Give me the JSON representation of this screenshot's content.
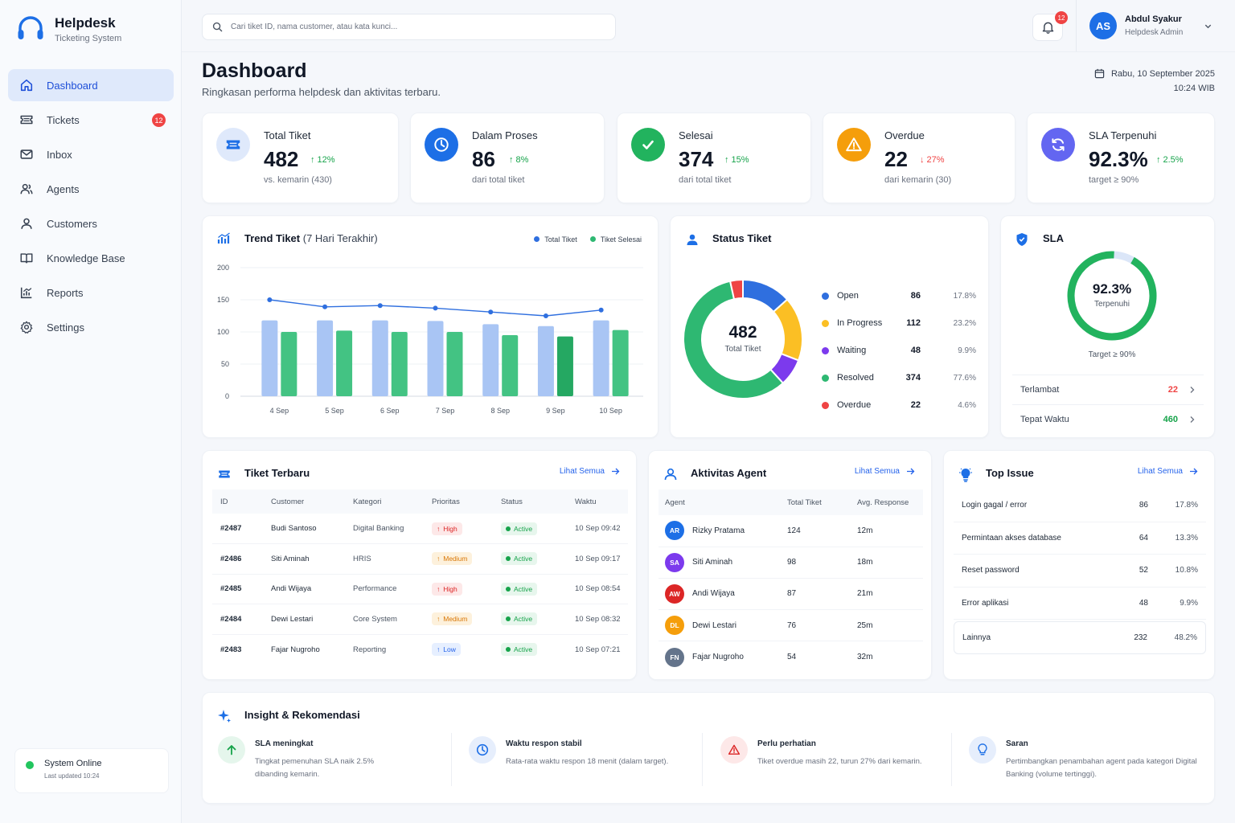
{
  "brand": {
    "title": "Helpdesk",
    "subtitle": "Ticketing System"
  },
  "nav": [
    {
      "label": "Dashboard",
      "icon": "home-icon",
      "active": true
    },
    {
      "label": "Tickets",
      "icon": "ticket-icon",
      "badge": "12"
    },
    {
      "label": "Inbox",
      "icon": "mail-icon"
    },
    {
      "label": "Agents",
      "icon": "users-icon"
    },
    {
      "label": "Customers",
      "icon": "user-icon"
    },
    {
      "label": "Knowledge Base",
      "icon": "book-icon"
    },
    {
      "label": "Reports",
      "icon": "chart-icon"
    },
    {
      "label": "Settings",
      "icon": "gear-icon"
    }
  ],
  "system": {
    "title": "System Online",
    "updated": "Last updated 10:24"
  },
  "search": {
    "placeholder": "Cari tiket ID, nama customer, atau kata kunci..."
  },
  "notifications": {
    "count": "12"
  },
  "user": {
    "initials": "AS",
    "name": "Abdul Syakur",
    "role": "Helpdesk Admin"
  },
  "page": {
    "title": "Dashboard",
    "subtitle": "Ringkasan performa helpdesk dan aktivitas terbaru.",
    "date": "Rabu, 10 September 2025",
    "time": "10:24 WIB"
  },
  "stats": [
    {
      "label": "Total Tiket",
      "value": "482",
      "delta": "12%",
      "direction": "up",
      "note": "vs. kemarin (430)",
      "icon": "ticket-icon",
      "color": "#1d6fe6",
      "bg": "#dfe9fb"
    },
    {
      "label": "Dalam Proses",
      "value": "86",
      "delta": "8%",
      "direction": "up",
      "note": "dari total tiket",
      "icon": "clock-icon",
      "color": "#ffffff",
      "bg": "#1d6fe6"
    },
    {
      "label": "Selesai",
      "value": "374",
      "delta": "15%",
      "direction": "up",
      "note": "dari total tiket",
      "icon": "check-icon",
      "color": "#ffffff",
      "bg": "#22b35e"
    },
    {
      "label": "Overdue",
      "value": "22",
      "delta": "27%",
      "direction": "down",
      "note": "dari kemarin (30)",
      "icon": "warning-icon",
      "color": "#ffffff",
      "bg": "#f59e0b"
    },
    {
      "label": "SLA Terpenuhi",
      "value": "92.3%",
      "delta": "2.5%",
      "direction": "up",
      "note": "target ≥ 90%",
      "icon": "refresh-icon",
      "color": "#ffffff",
      "bg": "#6366f1"
    }
  ],
  "trend": {
    "title": "Trend Tiket",
    "title_suffix": "(7 Hari Terakhir)",
    "legend_total": "Total Tiket",
    "legend_done": "Tiket Selesai",
    "color_total": "#2f6fdf",
    "color_done": "#2eb872"
  },
  "chart_data": {
    "type": "bar",
    "categories": [
      "4 Sep",
      "5 Sep",
      "6 Sep",
      "7 Sep",
      "8 Sep",
      "9 Sep",
      "10 Sep"
    ],
    "series": [
      {
        "name": "Total Tiket",
        "type": "bar",
        "values": [
          118,
          118,
          118,
          117,
          112,
          109,
          118
        ]
      },
      {
        "name": "Tiket Selesai",
        "type": "bar",
        "values": [
          100,
          102,
          100,
          100,
          95,
          93,
          103
        ]
      },
      {
        "name": "Total Tiket",
        "type": "line",
        "values": [
          150,
          139,
          141,
          137,
          131,
          125,
          134
        ]
      }
    ],
    "ylim": [
      0,
      200
    ],
    "yticks": [
      "0",
      "50",
      "100",
      "150",
      "200"
    ],
    "grid": true,
    "legend": "top-right"
  },
  "status": {
    "title": "Status Tiket",
    "total": "482",
    "total_label": "Total Tiket",
    "items": [
      {
        "name": "Open",
        "count": "86",
        "pct": "17.8%",
        "value": 17.8,
        "color": "#2f6fdf"
      },
      {
        "name": "In Progress",
        "count": "112",
        "pct": "23.2%",
        "value": 23.2,
        "color": "#fbbf24"
      },
      {
        "name": "Waiting",
        "count": "48",
        "pct": "9.9%",
        "value": 9.9,
        "color": "#7c3aed"
      },
      {
        "name": "Resolved",
        "count": "374",
        "pct": "77.6%",
        "value": 77.6,
        "color": "#2eb872"
      },
      {
        "name": "Overdue",
        "count": "22",
        "pct": "4.6%",
        "value": 4.6,
        "color": "#ef4444"
      }
    ]
  },
  "sla": {
    "title": "SLA",
    "value": "92.3%",
    "percent": 92.3,
    "label": "Terpenuhi",
    "target": "Target ≥ 90%",
    "rows": [
      {
        "label": "Terlambat",
        "value": "22",
        "color": "#ef4444"
      },
      {
        "label": "Tepat Waktu",
        "value": "460",
        "color": "#16a34a"
      }
    ]
  },
  "recent": {
    "title": "Tiket Terbaru",
    "link": "Lihat Semua",
    "headers": [
      "ID",
      "Customer",
      "Kategori",
      "Prioritas",
      "Status",
      "Waktu"
    ],
    "rows": [
      {
        "id": "#2487",
        "customer": "Budi Santoso",
        "category": "Digital Banking",
        "priority": "High",
        "status": "Active",
        "time": "10 Sep 09:42"
      },
      {
        "id": "#2486",
        "customer": "Siti Aminah",
        "category": "HRIS",
        "priority": "Medium",
        "status": "Active",
        "time": "10 Sep 09:17"
      },
      {
        "id": "#2485",
        "customer": "Andi Wijaya",
        "category": "Performance",
        "priority": "High",
        "status": "Active",
        "time": "10 Sep 08:54"
      },
      {
        "id": "#2484",
        "customer": "Dewi Lestari",
        "category": "Core System",
        "priority": "Medium",
        "status": "Active",
        "time": "10 Sep 08:32"
      },
      {
        "id": "#2483",
        "customer": "Fajar Nugroho",
        "category": "Reporting",
        "priority": "Low",
        "status": "Active",
        "time": "10 Sep 07:21"
      }
    ]
  },
  "agents": {
    "title": "Aktivitas Agent",
    "link": "Lihat Semua",
    "headers": [
      "Agent",
      "Total Tiket",
      "Avg. Response"
    ],
    "rows": [
      {
        "initials": "AR",
        "name": "Rizky Pratama",
        "total": "124",
        "avg": "12m",
        "color": "#1d6fe6"
      },
      {
        "initials": "SA",
        "name": "Siti Aminah",
        "total": "98",
        "avg": "18m",
        "color": "#7c3aed"
      },
      {
        "initials": "AW",
        "name": "Andi Wijaya",
        "total": "87",
        "avg": "21m",
        "color": "#dc2626"
      },
      {
        "initials": "DL",
        "name": "Dewi Lestari",
        "total": "76",
        "avg": "25m",
        "color": "#f59e0b"
      },
      {
        "initials": "FN",
        "name": "Fajar Nugroho",
        "total": "54",
        "avg": "32m",
        "color": "#64748b"
      }
    ]
  },
  "issues": {
    "title": "Top Issue",
    "link": "Lihat Semua",
    "rows": [
      {
        "name": "Login gagal / error",
        "count": "86",
        "pct": "17.8%"
      },
      {
        "name": "Permintaan akses database",
        "count": "64",
        "pct": "13.3%"
      },
      {
        "name": "Reset password",
        "count": "52",
        "pct": "10.8%"
      },
      {
        "name": "Error aplikasi",
        "count": "48",
        "pct": "9.9%"
      },
      {
        "name": "Lainnya",
        "count": "232",
        "pct": "48.2%"
      }
    ]
  },
  "insight": {
    "title": "Insight & Rekomendasi",
    "items": [
      {
        "title": "SLA meningkat",
        "text": "Tingkat pemenuhan SLA naik 2.5% dibanding kemarin.",
        "icon": "arrow-up-icon",
        "bg": "#e5f6ec",
        "color": "#16a34a"
      },
      {
        "title": "Waktu respon stabil",
        "text": "Rata-rata waktu respon 18 menit (dalam target).",
        "icon": "clock-icon",
        "bg": "#e6eefc",
        "color": "#1d6fe6"
      },
      {
        "title": "Perlu perhatian",
        "text": "Tiket overdue masih 22, turun 27% dari kemarin.",
        "icon": "warning-icon",
        "bg": "#fde8e8",
        "color": "#dc2626"
      },
      {
        "title": "Saran",
        "text": "Pertimbangkan penambahan agent pada kategori Digital Banking (volume tertinggi).",
        "icon": "bulb-icon",
        "bg": "#e6eefc",
        "color": "#1d6fe6"
      }
    ]
  }
}
